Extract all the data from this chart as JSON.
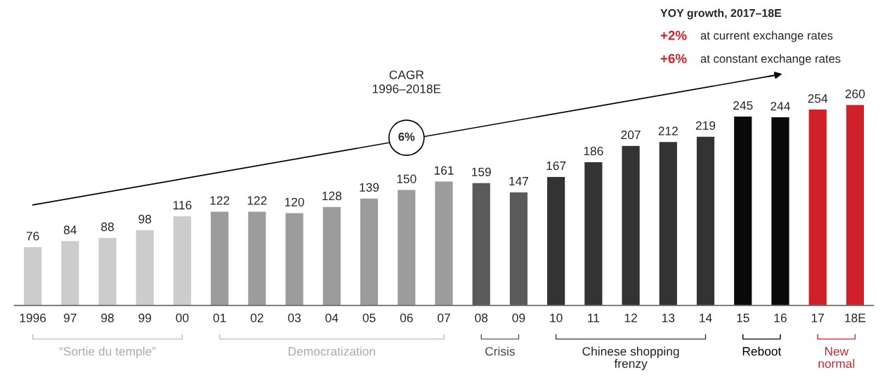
{
  "chart_data": {
    "type": "bar",
    "categories": [
      "1996",
      "97",
      "98",
      "99",
      "00",
      "01",
      "02",
      "03",
      "04",
      "05",
      "06",
      "07",
      "08",
      "09",
      "10",
      "11",
      "12",
      "13",
      "14",
      "15",
      "16",
      "17",
      "18E"
    ],
    "values": [
      76,
      84,
      88,
      98,
      116,
      122,
      122,
      120,
      128,
      139,
      150,
      161,
      159,
      147,
      167,
      186,
      207,
      212,
      219,
      245,
      244,
      254,
      260
    ],
    "colors": [
      "#cccccc",
      "#cccccc",
      "#cccccc",
      "#cccccc",
      "#cccccc",
      "#9c9c9c",
      "#9c9c9c",
      "#9c9c9c",
      "#9c9c9c",
      "#9c9c9c",
      "#9c9c9c",
      "#9c9c9c",
      "#5a5a5a",
      "#5a5a5a",
      "#333333",
      "#333333",
      "#333333",
      "#333333",
      "#333333",
      "#0a0a0a",
      "#0a0a0a",
      "#d0202a",
      "#d0202a"
    ],
    "data_labels": true,
    "grid": false,
    "legend": false,
    "annotations": [
      "CAGR\n1996–2018E",
      "6%",
      "YOY growth, 2017–18E",
      "+2%",
      "at current exchange rates",
      "+6%",
      "at constant exchange rates",
      "“Sortie du temple”",
      "Democratization",
      "Crisis",
      "Chinese shopping\nfrenzy",
      "Reboot",
      "New\nnormal"
    ]
  }
}
